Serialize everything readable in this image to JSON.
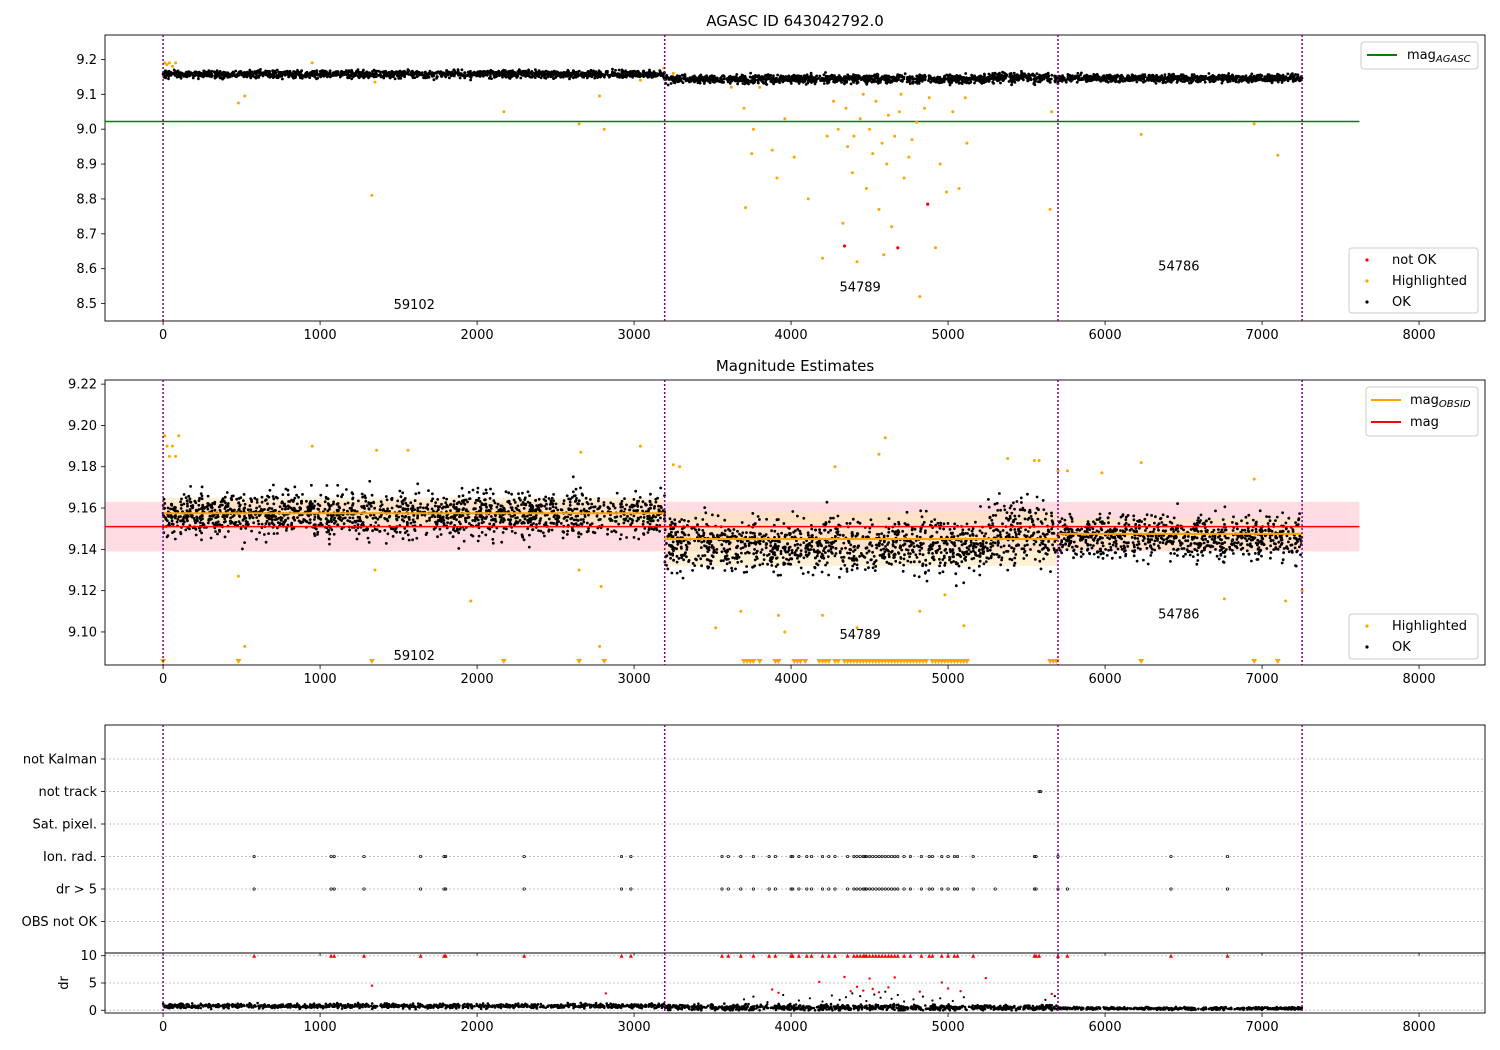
{
  "figure": {
    "title_top": "AGASC ID 643042792.0",
    "title_middle": "Magnitude Estimates"
  },
  "colors": {
    "ok": "#000000",
    "highlighted": "#ffa500",
    "not_ok": "#ff0000",
    "mag_agasc": "#008000",
    "mag": "#ff0000",
    "mag_obsid": "#ffa500",
    "obsid_boundary": "#800080",
    "band_mag": "#ffc0cb",
    "band_obsid": "#ffe4b5"
  },
  "chart_data": [
    {
      "type": "scatter",
      "panel": "top",
      "title": "AGASC ID 643042792.0",
      "xlim": [
        -370,
        8420
      ],
      "ylim": [
        8.45,
        9.27
      ],
      "xticks": [
        0,
        1000,
        2000,
        3000,
        4000,
        5000,
        6000,
        7000,
        8000
      ],
      "yticks": [
        8.5,
        8.6,
        8.7,
        8.8,
        8.9,
        9.0,
        9.1,
        9.2
      ],
      "grid": false,
      "legend_upper": {
        "placement": "top-right",
        "entries": [
          {
            "label": "mag",
            "subscript": "AGASC",
            "style": "line"
          }
        ]
      },
      "legend_lower": {
        "placement": "bottom-right",
        "entries": [
          {
            "label": "not OK"
          },
          {
            "label": "Highlighted"
          },
          {
            "label": "OK"
          }
        ]
      },
      "mag_agasc": 9.022,
      "obsid_boundaries": [
        0,
        3195,
        5700,
        7255
      ],
      "obsid_labels": [
        {
          "text": "59102",
          "x": 1600,
          "y": 8.485
        },
        {
          "text": "54789",
          "x": 4440,
          "y": 8.535
        },
        {
          "text": "54786",
          "x": 6470,
          "y": 8.595
        }
      ],
      "ok_segments": [
        {
          "x0": 0,
          "x1": 3195,
          "center": 9.158,
          "spread": 0.009
        },
        {
          "x0": 3195,
          "x1": 5250,
          "center": 9.144,
          "spread": 0.01
        },
        {
          "x0": 5250,
          "x1": 5700,
          "center": 9.148,
          "spread": 0.013
        },
        {
          "x0": 5700,
          "x1": 7255,
          "center": 9.146,
          "spread": 0.009
        }
      ],
      "highlighted": [
        [
          10,
          9.19
        ],
        [
          25,
          9.185
        ],
        [
          40,
          9.19
        ],
        [
          60,
          9.18
        ],
        [
          80,
          9.19
        ],
        [
          480,
          9.075
        ],
        [
          520,
          9.095
        ],
        [
          950,
          9.19
        ],
        [
          1330,
          8.81
        ],
        [
          1350,
          9.135
        ],
        [
          2170,
          9.05
        ],
        [
          2650,
          9.015
        ],
        [
          2780,
          9.095
        ],
        [
          2810,
          9.0
        ],
        [
          3040,
          9.14
        ],
        [
          3190,
          9.175
        ],
        [
          3250,
          9.16
        ],
        [
          3620,
          9.12
        ],
        [
          3700,
          9.06
        ],
        [
          3710,
          8.775
        ],
        [
          3750,
          8.93
        ],
        [
          3760,
          9.0
        ],
        [
          3800,
          9.12
        ],
        [
          3880,
          8.94
        ],
        [
          3910,
          8.86
        ],
        [
          3960,
          9.03
        ],
        [
          4020,
          8.92
        ],
        [
          4110,
          8.8
        ],
        [
          4200,
          8.63
        ],
        [
          4230,
          8.98
        ],
        [
          4270,
          9.08
        ],
        [
          4330,
          8.73
        ],
        [
          4360,
          8.95
        ],
        [
          4390,
          8.875
        ],
        [
          4420,
          8.62
        ],
        [
          4440,
          9.03
        ],
        [
          4480,
          8.83
        ],
        [
          4520,
          8.93
        ],
        [
          4560,
          8.77
        ],
        [
          4590,
          8.64
        ],
        [
          4610,
          8.9
        ],
        [
          4640,
          8.72
        ],
        [
          4690,
          9.05
        ],
        [
          4720,
          8.86
        ],
        [
          4750,
          8.92
        ],
        [
          4800,
          9.02
        ],
        [
          4820,
          8.52
        ],
        [
          4880,
          9.09
        ],
        [
          4920,
          8.66
        ],
        [
          4950,
          8.9
        ],
        [
          4990,
          8.82
        ],
        [
          5030,
          9.05
        ],
        [
          5070,
          8.83
        ],
        [
          5110,
          9.09
        ],
        [
          5120,
          8.96
        ],
        [
          5650,
          8.77
        ],
        [
          5660,
          9.05
        ],
        [
          6230,
          8.985
        ],
        [
          6950,
          9.015
        ],
        [
          7100,
          8.925
        ],
        [
          4300,
          9.0
        ],
        [
          4350,
          9.06
        ],
        [
          4400,
          8.98
        ],
        [
          4460,
          9.1
        ],
        [
          4500,
          9.0
        ],
        [
          4540,
          9.08
        ],
        [
          4580,
          8.96
        ],
        [
          4620,
          9.04
        ],
        [
          4660,
          8.98
        ],
        [
          4700,
          9.1
        ],
        [
          4770,
          8.97
        ],
        [
          4850,
          9.06
        ]
      ],
      "not_ok": [
        [
          4870,
          8.785
        ],
        [
          4340,
          8.665
        ],
        [
          4680,
          8.66
        ]
      ]
    },
    {
      "type": "scatter",
      "panel": "middle",
      "title": "Magnitude Estimates",
      "xlim": [
        -370,
        8420
      ],
      "ylim": [
        9.084,
        9.222
      ],
      "xticks": [
        0,
        1000,
        2000,
        3000,
        4000,
        5000,
        6000,
        7000,
        8000
      ],
      "yticks": [
        9.1,
        9.12,
        9.14,
        9.16,
        9.18,
        9.2,
        9.22
      ],
      "grid": false,
      "legend_upper": {
        "placement": "top-right",
        "entries": [
          {
            "label": "mag",
            "subscript": "OBSID",
            "style": "line"
          },
          {
            "label": "mag",
            "style": "line"
          }
        ]
      },
      "legend_lower": {
        "placement": "bottom-right",
        "entries": [
          {
            "label": "Highlighted"
          },
          {
            "label": "OK"
          }
        ]
      },
      "mag_mean": 9.151,
      "mag_band": [
        9.139,
        9.163
      ],
      "obsid_mags": [
        {
          "x0": 0,
          "x1": 3195,
          "value": 9.1575,
          "band": [
            9.15,
            9.165
          ]
        },
        {
          "x0": 3195,
          "x1": 5700,
          "value": 9.145,
          "band": [
            9.132,
            9.158
          ]
        },
        {
          "x0": 5700,
          "x1": 7255,
          "value": 9.1475,
          "band": [
            9.14,
            9.155
          ]
        }
      ],
      "obsid_boundaries": [
        0,
        3195,
        5700,
        7255
      ],
      "obsid_labels": [
        {
          "text": "59102",
          "x": 1600,
          "y": 9.0865
        },
        {
          "text": "54789",
          "x": 4440,
          "y": 9.0965
        },
        {
          "text": "54786",
          "x": 6470,
          "y": 9.1065
        }
      ],
      "ok_segments": [
        {
          "x0": 0,
          "x1": 3195,
          "center": 9.157,
          "spread": 0.009
        },
        {
          "x0": 3195,
          "x1": 5250,
          "center": 9.142,
          "spread": 0.011
        },
        {
          "x0": 5250,
          "x1": 5700,
          "center": 9.148,
          "spread": 0.013
        },
        {
          "x0": 5700,
          "x1": 7255,
          "center": 9.146,
          "spread": 0.009
        }
      ],
      "highlighted": [
        [
          10,
          9.195
        ],
        [
          25,
          9.19
        ],
        [
          40,
          9.185
        ],
        [
          60,
          9.19
        ],
        [
          80,
          9.185
        ],
        [
          100,
          9.195
        ],
        [
          480,
          9.127
        ],
        [
          520,
          9.093
        ],
        [
          950,
          9.19
        ],
        [
          1350,
          9.13
        ],
        [
          1360,
          9.188
        ],
        [
          1560,
          9.188
        ],
        [
          1960,
          9.115
        ],
        [
          2650,
          9.13
        ],
        [
          2660,
          9.187
        ],
        [
          2780,
          9.093
        ],
        [
          2790,
          9.122
        ],
        [
          3040,
          9.19
        ],
        [
          3250,
          9.181
        ],
        [
          3290,
          9.18
        ],
        [
          3520,
          9.102
        ],
        [
          3680,
          9.11
        ],
        [
          3920,
          9.108
        ],
        [
          3960,
          9.1
        ],
        [
          4200,
          9.108
        ],
        [
          4280,
          9.18
        ],
        [
          4420,
          9.102
        ],
        [
          4560,
          9.186
        ],
        [
          4600,
          9.194
        ],
        [
          4820,
          9.11
        ],
        [
          4980,
          9.118
        ],
        [
          5100,
          9.103
        ],
        [
          5380,
          9.184
        ],
        [
          5550,
          9.183
        ],
        [
          5580,
          9.183
        ],
        [
          5700,
          9.178
        ],
        [
          5760,
          9.178
        ],
        [
          5980,
          9.177
        ],
        [
          6230,
          9.182
        ],
        [
          6760,
          9.116
        ],
        [
          6950,
          9.174
        ],
        [
          7150,
          9.115
        ],
        [
          7255,
          9.12
        ]
      ],
      "clipped_low": [
        0,
        480,
        1330,
        2170,
        2650,
        2810,
        3700,
        3720,
        3740,
        3760,
        3800,
        3900,
        3920,
        4020,
        4040,
        4060,
        4090,
        4180,
        4200,
        4220,
        4240,
        4280,
        4300,
        4340,
        4360,
        4380,
        4400,
        4420,
        4440,
        4460,
        4480,
        4500,
        4520,
        4540,
        4560,
        4580,
        4600,
        4620,
        4640,
        4660,
        4680,
        4700,
        4720,
        4740,
        4760,
        4780,
        4800,
        4820,
        4840,
        4860,
        4900,
        4920,
        4940,
        4960,
        4980,
        5000,
        5020,
        5040,
        5060,
        5080,
        5100,
        5120,
        5650,
        5670,
        5690,
        6230,
        6950,
        7100
      ]
    },
    {
      "type": "scatter",
      "panel": "flags",
      "xlim": [
        -370,
        8420
      ],
      "xticks": [
        0,
        1000,
        2000,
        3000,
        4000,
        5000,
        6000,
        7000,
        8000
      ],
      "categories": [
        "not Kalman",
        "not track",
        "Sat. pixel.",
        "Ion. rad.",
        "dr > 5",
        "OBS not OK"
      ],
      "grid": "horizontal-dotted",
      "obsid_boundaries": [
        0,
        3195,
        5700,
        7255
      ],
      "flags": {
        "not Kalman": [],
        "not track": [
          5580,
          5590
        ],
        "Sat. pixel.": [],
        "Ion. rad.": [
          580,
          1070,
          1090,
          1280,
          1640,
          1790,
          1800,
          2300,
          2920,
          2980,
          3560,
          3600,
          3680,
          3760,
          3860,
          3900,
          4000,
          4010,
          4050,
          4100,
          4130,
          4200,
          4240,
          4280,
          4360,
          4400,
          4420,
          4440,
          4460,
          4470,
          4480,
          4500,
          4520,
          4540,
          4560,
          4580,
          4600,
          4620,
          4640,
          4660,
          4680,
          4720,
          4760,
          4830,
          4880,
          4900,
          4960,
          5000,
          5040,
          5060,
          5160,
          5550,
          5560,
          5700,
          6420,
          6780
        ],
        "dr > 5": [
          580,
          1070,
          1090,
          1280,
          1640,
          1790,
          1800,
          2300,
          2920,
          2980,
          3560,
          3600,
          3680,
          3760,
          3860,
          3900,
          4000,
          4010,
          4050,
          4100,
          4130,
          4200,
          4240,
          4280,
          4360,
          4400,
          4420,
          4440,
          4460,
          4470,
          4480,
          4500,
          4520,
          4540,
          4560,
          4580,
          4600,
          4620,
          4640,
          4660,
          4680,
          4720,
          4760,
          4830,
          4880,
          4900,
          4960,
          5000,
          5040,
          5060,
          5160,
          5300,
          5550,
          5560,
          5700,
          5760,
          6420,
          6780
        ],
        "OBS not OK": []
      }
    },
    {
      "type": "scatter",
      "panel": "dr",
      "ylabel": "dr",
      "xlim": [
        -370,
        8420
      ],
      "ylim": [
        -0.5,
        10.5
      ],
      "yticks": [
        0,
        5,
        10
      ],
      "xticks": [
        0,
        1000,
        2000,
        3000,
        4000,
        5000,
        6000,
        7000,
        8000
      ],
      "xticklabels": [
        "0",
        "1000",
        "2000",
        "3000",
        "4000",
        "5000",
        "6000",
        "7000",
        "8000"
      ],
      "grid": "horizontal-dotted",
      "obsid_boundaries": [
        0,
        3195,
        5700,
        7255
      ],
      "ok_segments": [
        {
          "x0": 0,
          "x1": 3195,
          "center": 0.8,
          "spread": 0.35
        },
        {
          "x0": 3195,
          "x1": 5700,
          "center": 0.5,
          "spread": 0.45
        },
        {
          "x0": 5700,
          "x1": 7255,
          "center": 0.35,
          "spread": 0.2
        }
      ],
      "red_at_10": [
        580,
        1070,
        1090,
        1280,
        1640,
        1790,
        1800,
        2300,
        2920,
        2980,
        3560,
        3600,
        3680,
        3760,
        3860,
        3900,
        4000,
        4010,
        4050,
        4100,
        4130,
        4200,
        4240,
        4280,
        4360,
        4400,
        4420,
        4440,
        4460,
        4470,
        4480,
        4500,
        4520,
        4540,
        4560,
        4580,
        4600,
        4620,
        4640,
        4660,
        4680,
        4720,
        4760,
        4830,
        4880,
        4900,
        4960,
        5000,
        5040,
        5060,
        5160,
        5550,
        5560,
        5580,
        5700,
        5760,
        6420,
        6780
      ],
      "red_points": [
        [
          1330,
          4.5
        ],
        [
          2820,
          3.1
        ],
        [
          3880,
          3.8
        ],
        [
          3920,
          3.2
        ],
        [
          4180,
          5.2
        ],
        [
          4340,
          6.1
        ],
        [
          4380,
          3.5
        ],
        [
          4420,
          4.3
        ],
        [
          4460,
          3.6
        ],
        [
          4500,
          5.8
        ],
        [
          4520,
          3.9
        ],
        [
          4560,
          3.3
        ],
        [
          4620,
          4.2
        ],
        [
          4660,
          6.0
        ],
        [
          4820,
          3.4
        ],
        [
          4960,
          5.1
        ],
        [
          5000,
          4.0
        ],
        [
          5080,
          3.5
        ],
        [
          5240,
          5.9
        ],
        [
          5660,
          3.0
        ]
      ],
      "scatter_points": [
        [
          3700,
          2.0
        ],
        [
          3760,
          2.5
        ],
        [
          3850,
          1.5
        ],
        [
          3950,
          2.8
        ],
        [
          4050,
          1.8
        ],
        [
          4120,
          2.2
        ],
        [
          4200,
          1.6
        ],
        [
          4260,
          2.7
        ],
        [
          4310,
          1.9
        ],
        [
          4350,
          2.4
        ],
        [
          4390,
          3.1
        ],
        [
          4440,
          2.6
        ],
        [
          4480,
          1.7
        ],
        [
          4530,
          2.9
        ],
        [
          4570,
          2.3
        ],
        [
          4600,
          3.4
        ],
        [
          4640,
          2.1
        ],
        [
          4680,
          2.8
        ],
        [
          4720,
          1.6
        ],
        [
          4780,
          2.0
        ],
        [
          4840,
          2.5
        ],
        [
          4900,
          1.8
        ],
        [
          4950,
          2.2
        ],
        [
          5030,
          1.7
        ],
        [
          5100,
          2.4
        ],
        [
          5620,
          1.9
        ],
        [
          5680,
          2.6
        ]
      ]
    }
  ]
}
